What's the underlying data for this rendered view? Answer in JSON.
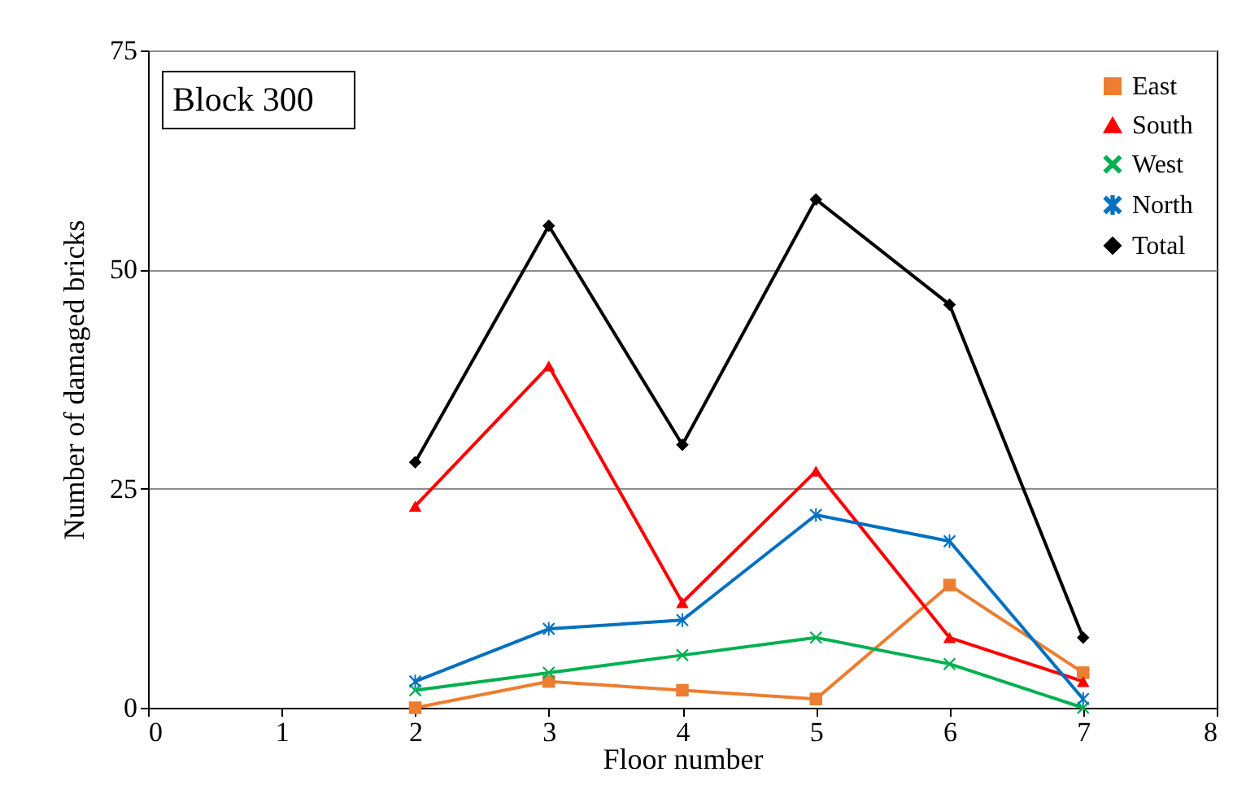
{
  "chart_data": {
    "type": "line",
    "xlabel": "Floor number",
    "ylabel": "Number of damaged bricks",
    "x": [
      2,
      3,
      4,
      5,
      6,
      7
    ],
    "xlim": [
      0,
      8
    ],
    "xticks": [
      0,
      1,
      2,
      3,
      4,
      5,
      6,
      7,
      8
    ],
    "ylim": [
      0,
      75
    ],
    "yticks": [
      0,
      25,
      50,
      75
    ],
    "grid": "y",
    "legend": "top right",
    "annotations": [
      "Block 300"
    ],
    "series": [
      {
        "name": "East",
        "color": "#ed7d31",
        "marker": "square",
        "values": [
          0,
          3,
          2,
          1,
          14,
          4
        ]
      },
      {
        "name": "South",
        "color": "#ff0000",
        "marker": "triangle",
        "values": [
          23,
          39,
          12,
          27,
          8,
          3
        ]
      },
      {
        "name": "West",
        "color": "#00b050",
        "marker": "cross",
        "values": [
          2,
          4,
          6,
          8,
          5,
          0
        ]
      },
      {
        "name": "North",
        "color": "#0070c0",
        "marker": "star",
        "values": [
          3,
          9,
          10,
          22,
          19,
          1
        ]
      },
      {
        "name": "Total",
        "color": "#000000",
        "marker": "diamond",
        "values": [
          28,
          55,
          30,
          58,
          46,
          8
        ]
      }
    ]
  }
}
